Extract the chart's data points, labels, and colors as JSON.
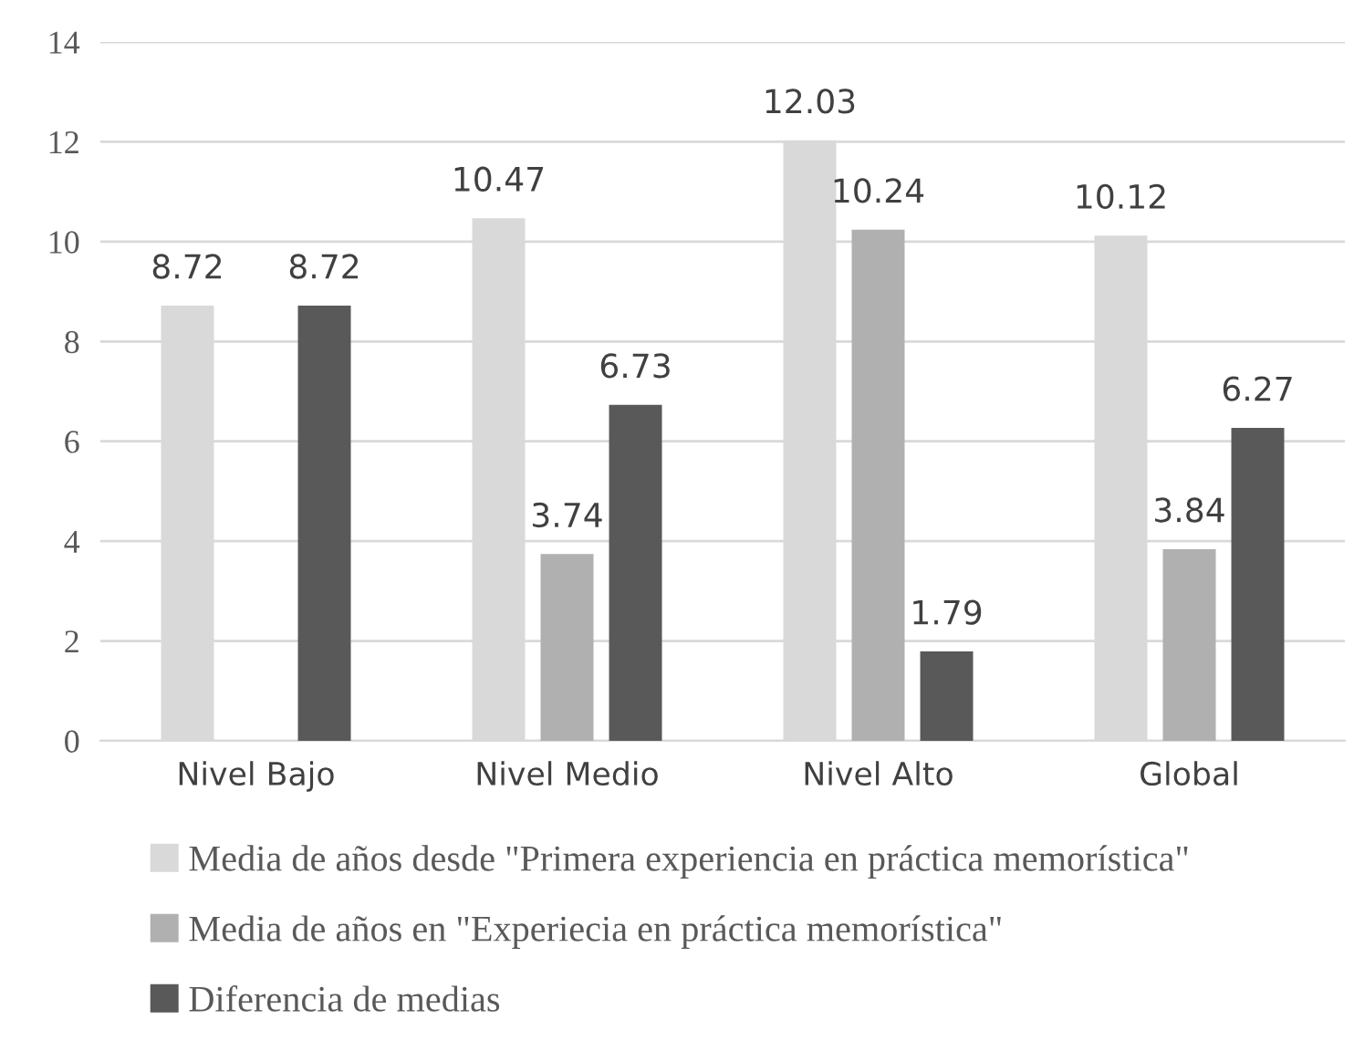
{
  "chart_data": {
    "type": "bar",
    "categories": [
      "Nivel Bajo",
      "Nivel Medio",
      "Nivel Alto",
      "Global"
    ],
    "series": [
      {
        "name": "Media de años desde \"Primera experiencia en práctica memorística\"",
        "color": "#d9d9d9",
        "values": [
          8.72,
          10.47,
          12.03,
          10.12
        ]
      },
      {
        "name": "Media de años en \"Experiecia en práctica memorística\"",
        "color": "#b0b0b0",
        "values": [
          null,
          3.74,
          10.24,
          3.84
        ]
      },
      {
        "name": "Diferencia de medias",
        "color": "#595959",
        "values": [
          8.72,
          6.73,
          1.79,
          6.27
        ]
      }
    ],
    "ylim": [
      0,
      14
    ],
    "yticks": [
      0,
      2,
      4,
      6,
      8,
      10,
      12,
      14
    ],
    "grid": "y",
    "legend": "bottom",
    "data_labels": true
  }
}
